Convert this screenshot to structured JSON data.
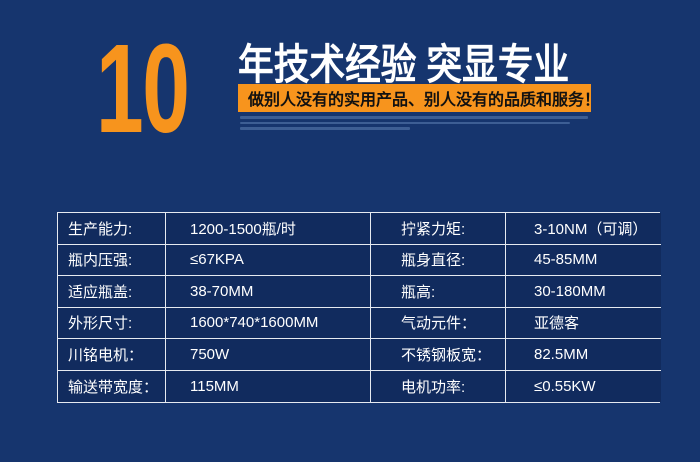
{
  "theme": {
    "background": "#16356E",
    "accent_orange": "#F7941D",
    "table_cell_bg": "#112B5E",
    "table_border": "#E6EAF1",
    "headline_text": "#FFFFFF",
    "banner_text": "#111111"
  },
  "header": {
    "years_number": "10",
    "title": "年技术经验 突显专业",
    "subtitle_banner": "做别人没有的实用产品、别人没有的品质和服务！"
  },
  "specs": {
    "rows": [
      [
        "生产能力:",
        "1200-1500瓶/时",
        "拧紧力矩:",
        "3-10NM（可调）"
      ],
      [
        "瓶内压强:",
        "≤67KPA",
        "瓶身直径:",
        "45-85MM"
      ],
      [
        "适应瓶盖:",
        "38-70MM",
        "瓶高:",
        "30-180MM"
      ],
      [
        "外形尺寸:",
        "1600*740*1600MM",
        "气动元件：",
        "亚德客"
      ],
      [
        "川铭电机：",
        "750W",
        "不锈钢板宽：",
        "82.5MM"
      ],
      [
        "输送带宽度：",
        "115MM",
        "电机功率:",
        "≤0.55KW"
      ]
    ]
  }
}
